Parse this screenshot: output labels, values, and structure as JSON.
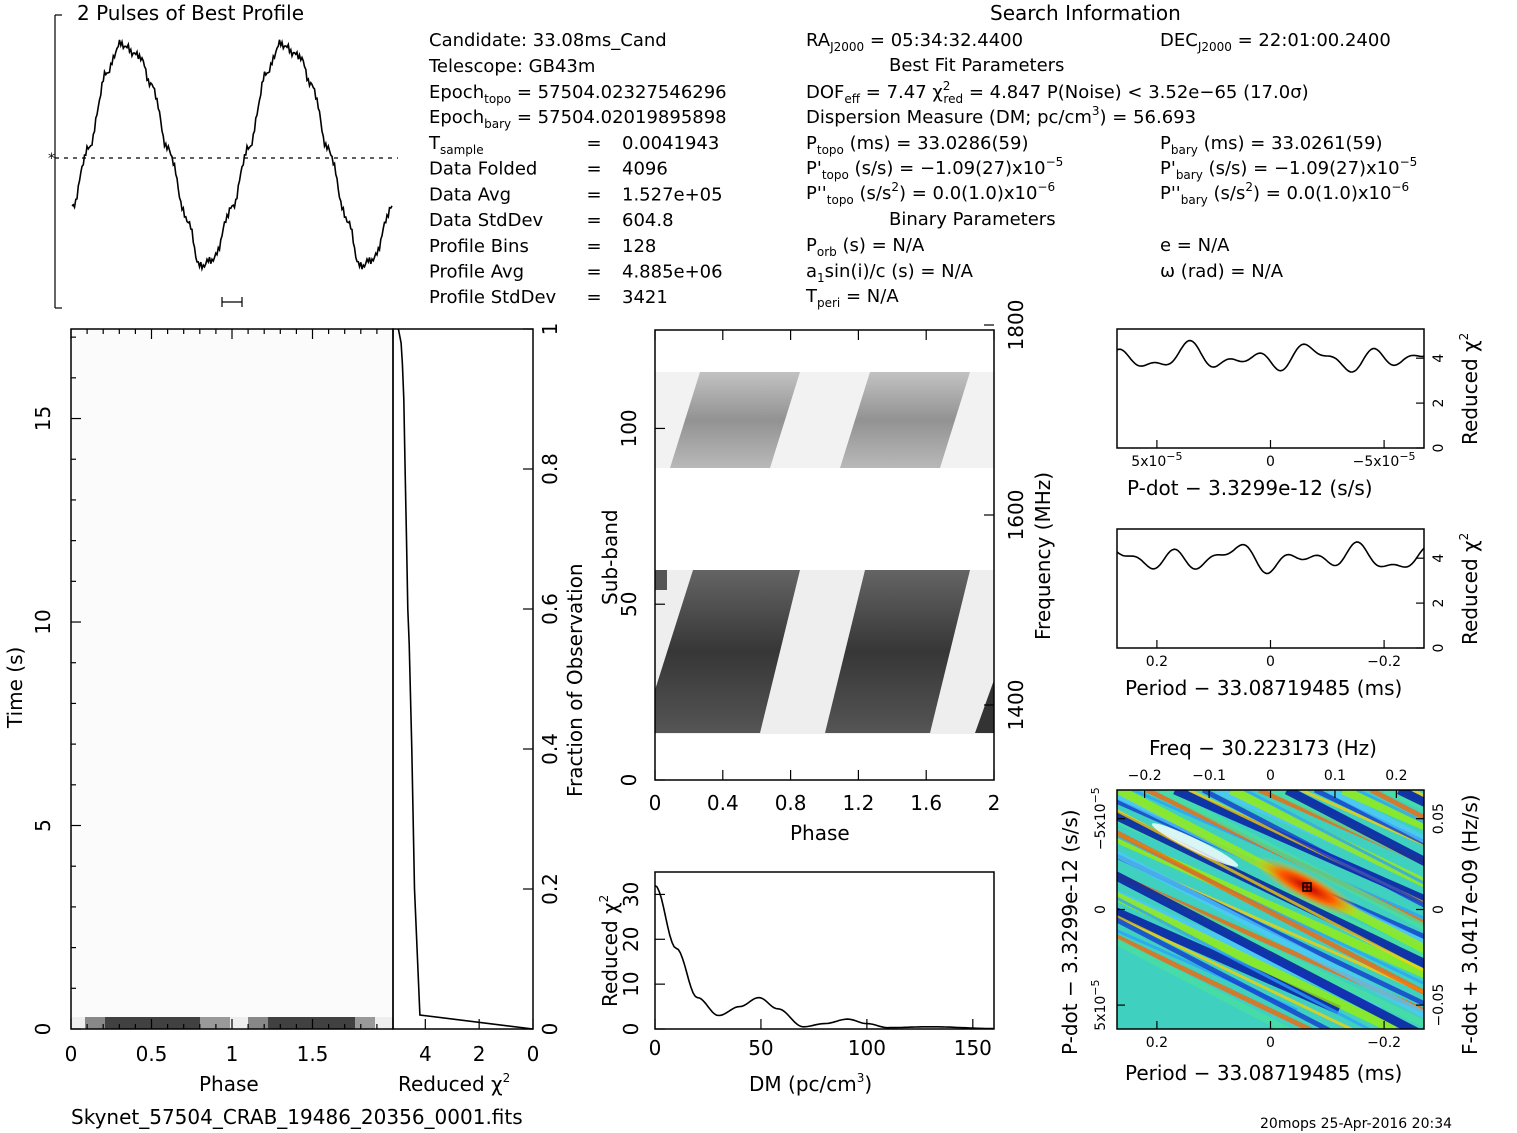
{
  "footer": {
    "filename": "Skynet_57504_CRAB_19486_20356_0001.fits",
    "stamp": "20mops 25-Apr-2016 20:34"
  },
  "profile": {
    "title": "2 Pulses of Best Profile"
  },
  "info": {
    "search_title": "Search Information",
    "best_fit_title": "Best Fit Parameters",
    "binary_title": "Binary Parameters",
    "candidate": "Candidate:  33.08ms_Cand",
    "telescope": "Telescope:  GB43m",
    "epoch_topo": [
      "Epoch",
      "topo",
      " = 57504.02327546296"
    ],
    "epoch_bary": [
      "Epoch",
      "bary",
      " = 57504.02019895898"
    ],
    "left_rows": [
      {
        "label": "T",
        "sub": "sample",
        "eq": "=",
        "value": "0.0041943"
      },
      {
        "label": "Data Folded",
        "sub": "",
        "eq": "=",
        "value": "4096"
      },
      {
        "label": "Data Avg",
        "sub": "",
        "eq": "=",
        "value": "1.527e+05"
      },
      {
        "label": "Data StdDev",
        "sub": "",
        "eq": "=",
        "value": "604.8"
      },
      {
        "label": "Profile Bins",
        "sub": "",
        "eq": "=",
        "value": "128"
      },
      {
        "label": "Profile Avg",
        "sub": "",
        "eq": "=",
        "value": "4.885e+06"
      },
      {
        "label": "Profile StdDev",
        "sub": "",
        "eq": "=",
        "value": "3421"
      }
    ],
    "ra": [
      "RA",
      "J2000",
      " = 05:34:32.4400"
    ],
    "dec": [
      "DEC",
      "J2000",
      " = 22:01:00.2400"
    ],
    "dof": [
      "DOF",
      "eff",
      " = 7.47  ",
      "χ",
      "2",
      "red",
      " = 4.847  P(Noise) < 3.52e−65  (17.0σ)"
    ],
    "dm_line": [
      "Dispersion Measure (DM; pc/cm",
      "3",
      ") = 56.693"
    ],
    "p_topo": [
      "P",
      "topo",
      " (ms) =  33.0286(59)"
    ],
    "p_bary": [
      "P",
      "bary",
      " (ms) =  33.0261(59)"
    ],
    "pd_topo": [
      "P'",
      "topo",
      " (s/s) = −1.09(27)x10",
      "−5"
    ],
    "pd_bary": [
      "P'",
      "bary",
      " (s/s) = −1.09(27)x10",
      "−5"
    ],
    "pdd_topo": [
      "P''",
      "topo",
      " (s/s",
      "2",
      ") = 0.0(1.0)x10",
      "−6"
    ],
    "pdd_bary": [
      "P''",
      "bary",
      " (s/s",
      "2",
      ") = 0.0(1.0)x10",
      "−6"
    ],
    "p_orb": [
      "P",
      "orb",
      " (s) = N/A"
    ],
    "e": "e = N/A",
    "a1sini": [
      "a",
      "1",
      "sin(i)/c (s) = N/A"
    ],
    "omega": "ω (rad) = N/A",
    "t_peri": [
      "T",
      "peri",
      " = N/A"
    ]
  },
  "chart_data": [
    {
      "type": "line",
      "panel": "profile",
      "title": "2 Pulses of Best Profile",
      "x_range": [
        0,
        2
      ],
      "description_points": {
        "x": [
          0.0,
          0.1,
          0.3,
          0.5,
          0.8,
          0.9,
          1.0,
          1.1,
          1.3,
          1.5,
          1.8,
          1.9,
          2.0
        ],
        "y": [
          0.3,
          0.55,
          1.0,
          0.85,
          0.05,
          0.1,
          0.3,
          0.55,
          1.0,
          0.85,
          0.05,
          0.1,
          0.3
        ]
      }
    },
    {
      "type": "heatmap",
      "panel": "time-phase",
      "xlabel": "Phase",
      "ylabel": "Time (s)",
      "x_ticks": [
        "0",
        "0.5",
        "1",
        "1.5"
      ],
      "y_ticks": [
        "0",
        "5",
        "10",
        "15"
      ],
      "x_range": [
        0,
        2
      ],
      "y_range": [
        0,
        17.2
      ]
    },
    {
      "type": "line",
      "panel": "time-chi2",
      "xlabel": "Reduced χ2",
      "ylabel_right": "Fraction of Observation",
      "x_ticks": [
        "4",
        "2",
        "0"
      ],
      "y_ticks": [
        "0",
        "0.2",
        "0.4",
        "0.6",
        "0.8",
        "1"
      ],
      "x": [
        0.0,
        4.2,
        4.4,
        4.5,
        4.6,
        4.65,
        4.7,
        4.75,
        4.8,
        4.85,
        4.9,
        5.0
      ],
      "y": [
        0.0,
        0.02,
        0.2,
        0.4,
        0.55,
        0.6,
        0.7,
        0.8,
        0.9,
        0.95,
        0.98,
        1.0
      ]
    },
    {
      "type": "heatmap",
      "panel": "subband-phase",
      "xlabel": "Phase",
      "ylabel": "Sub-band",
      "ylabel_right": "Frequency (MHz)",
      "x_ticks": [
        "0",
        "0.4",
        "0.8",
        "1.2",
        "1.6",
        "2"
      ],
      "y_ticks": [
        "0",
        "50",
        "100"
      ],
      "freq_ticks": [
        "1400",
        "1600",
        "1800"
      ],
      "x_range": [
        0,
        2
      ],
      "y_range": [
        0,
        128
      ]
    },
    {
      "type": "line",
      "panel": "dm-chi2",
      "xlabel": "DM (pc/cm3)",
      "ylabel": "Reduced χ2",
      "x_ticks": [
        "0",
        "50",
        "100",
        "150"
      ],
      "y_ticks": [
        "0",
        "10",
        "20",
        "30"
      ],
      "x_range": [
        0,
        160
      ],
      "y_range": [
        0,
        35
      ],
      "x": [
        0,
        10,
        20,
        30,
        40,
        49,
        58,
        70,
        80,
        91,
        100,
        110,
        130,
        160
      ],
      "y": [
        32,
        18,
        7,
        3,
        5,
        7,
        4.5,
        0.5,
        1.2,
        2.2,
        1.2,
        0.3,
        0.5,
        0.1
      ]
    },
    {
      "type": "line",
      "panel": "pdot-chi2",
      "xlabel": "P-dot − 3.3299e-12 (s/s)",
      "ylabel": "Reduced χ2",
      "x_ticks": [
        "5x10",
        "0",
        "−5x10"
      ],
      "y_ticks": [
        "0",
        "2",
        "4"
      ],
      "y_range": [
        0,
        5.3
      ]
    },
    {
      "type": "line",
      "panel": "period-chi2",
      "xlabel": "Period − 33.08719485 (ms)",
      "ylabel": "Reduced χ2",
      "x_ticks": [
        "0.2",
        "0",
        "−0.2"
      ],
      "y_ticks": [
        "0",
        "2",
        "4"
      ],
      "y_range": [
        0,
        5.3
      ]
    },
    {
      "type": "heatmap",
      "panel": "period-pdot",
      "title_top": "Freq − 30.223173 (Hz)",
      "xlabel": "Period − 33.08719485 (ms)",
      "ylabel": "P-dot − 3.3299e-12 (s/s)",
      "ylabel_right": "F-dot + 3.0417e-09 (Hz/s)",
      "x_ticks": [
        "0.2",
        "0",
        "−0.2"
      ],
      "top_ticks": [
        "−0.2",
        "−0.1",
        "0",
        "0.1",
        "0.2"
      ],
      "y_ticks": [
        "−5x10",
        "0",
        "5x10"
      ],
      "right_ticks": [
        "0.05",
        "0",
        "−0.05"
      ]
    }
  ]
}
